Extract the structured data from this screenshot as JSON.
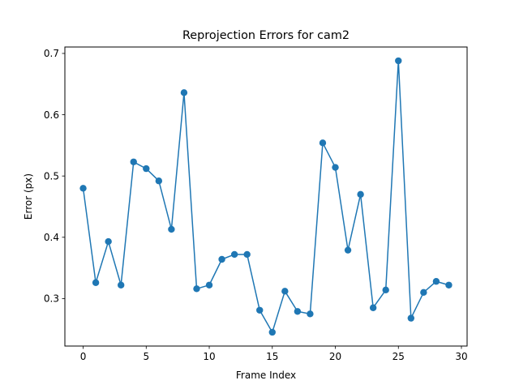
{
  "chart_data": {
    "type": "line",
    "title": "Reprojection Errors for cam2",
    "xlabel": "Frame Index",
    "ylabel": "Error (px)",
    "xlim": [
      -1.45,
      30.45
    ],
    "ylim": [
      0.2225,
      0.7105
    ],
    "xticks": [
      0,
      5,
      10,
      15,
      20,
      25,
      30
    ],
    "xtick_labels": [
      "0",
      "5",
      "10",
      "15",
      "20",
      "25",
      "30"
    ],
    "yticks": [
      0.3,
      0.4,
      0.5,
      0.6,
      0.7
    ],
    "ytick_labels": [
      "0.3",
      "0.4",
      "0.5",
      "0.6",
      "0.7"
    ],
    "grid": false,
    "series": [
      {
        "color": "#1f77b4",
        "marker": "circle",
        "x": [
          0,
          1,
          2,
          3,
          4,
          5,
          6,
          7,
          8,
          9,
          10,
          11,
          12,
          13,
          14,
          15,
          16,
          17,
          18,
          19,
          20,
          21,
          22,
          23,
          24,
          25,
          26,
          27,
          28,
          29
        ],
        "y": [
          0.48,
          0.326,
          0.393,
          0.322,
          0.523,
          0.512,
          0.492,
          0.413,
          0.636,
          0.316,
          0.322,
          0.364,
          0.372,
          0.372,
          0.281,
          0.245,
          0.312,
          0.279,
          0.275,
          0.554,
          0.514,
          0.379,
          0.47,
          0.285,
          0.314,
          0.688,
          0.268,
          0.31,
          0.328,
          0.322
        ]
      }
    ]
  }
}
